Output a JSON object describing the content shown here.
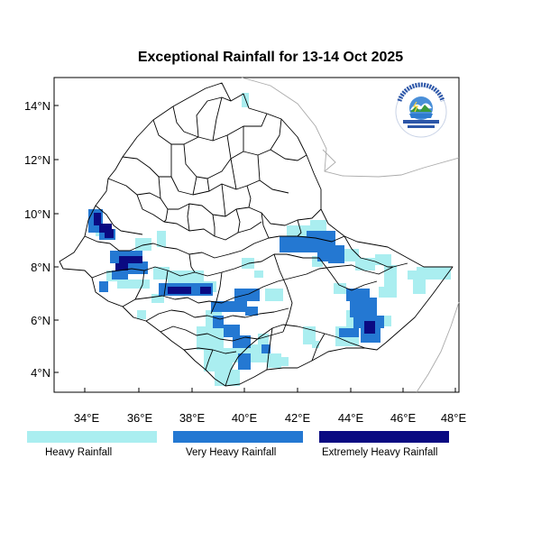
{
  "title": "Exceptional Rainfall for 13-14 Oct 2025",
  "lat_axis": [
    "14°N",
    "12°N",
    "10°N",
    "8°N",
    "6°N",
    "4°N"
  ],
  "lon_axis": [
    "34°E",
    "36°E",
    "38°E",
    "40°E",
    "42°E",
    "44°E",
    "46°E",
    "48°E"
  ],
  "colors": {
    "heavy": "#aaeef0",
    "very_heavy": "#2478d2",
    "extreme": "#0a0a82",
    "boundary": "#000000",
    "outer_boundary": "#aaaaaa"
  },
  "legend": [
    {
      "label": "Heavy Rainfall",
      "color": "#aaeef0"
    },
    {
      "label": "Very Heavy Rainfall",
      "color": "#2478d2"
    },
    {
      "label": "Extremely Heavy Rainfall",
      "color": "#0a0a82"
    }
  ],
  "logo": {
    "name": "Ethiopian Meteorology Institute emblem"
  }
}
